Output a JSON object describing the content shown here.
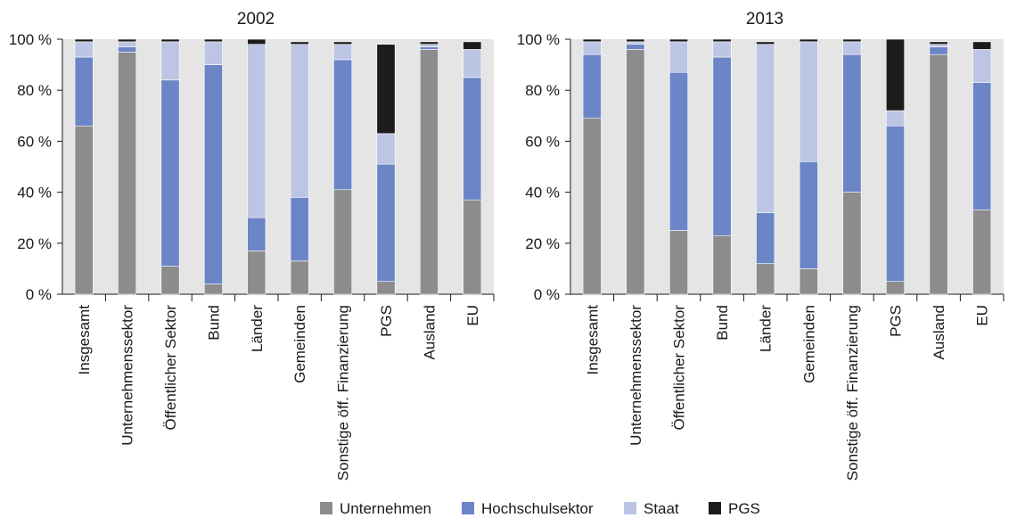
{
  "chart_data": [
    {
      "type": "bar",
      "stacked": true,
      "title": "2002",
      "categories": [
        "Insgesamt",
        "Unternehmenssektor",
        "Öffentlicher Sektor",
        "Bund",
        "Länder",
        "Gemeinden",
        "Sonstige öff. Finanzierung",
        "PGS",
        "Ausland",
        "EU"
      ],
      "series": [
        {
          "name": "Unternehmen",
          "values": [
            66,
            95,
            11,
            4,
            17,
            13,
            41,
            5,
            96,
            37
          ]
        },
        {
          "name": "Hochschulsektor",
          "values": [
            27,
            2,
            73,
            86,
            13,
            25,
            51,
            46,
            1,
            48
          ]
        },
        {
          "name": "Staat",
          "values": [
            6,
            2,
            15,
            9,
            68,
            60,
            6,
            12,
            1,
            11
          ]
        },
        {
          "name": "PGS",
          "values": [
            1,
            1,
            1,
            1,
            2,
            1,
            1,
            35,
            1,
            3
          ]
        }
      ],
      "yticks": [
        "0 %",
        "20 %",
        "40 %",
        "60 %",
        "80 %",
        "100 %"
      ],
      "ylim": [
        0,
        100
      ],
      "grid": false
    },
    {
      "type": "bar",
      "stacked": true,
      "title": "2013",
      "categories": [
        "Insgesamt",
        "Unternehmenssektor",
        "Öffentlicher Sektor",
        "Bund",
        "Länder",
        "Gemeinden",
        "Sonstige öff. Finanzierung",
        "PGS",
        "Ausland",
        "EU"
      ],
      "series": [
        {
          "name": "Unternehmen",
          "values": [
            69,
            96,
            25,
            23,
            12,
            10,
            40,
            5,
            94,
            33
          ]
        },
        {
          "name": "Hochschulsektor",
          "values": [
            25,
            2,
            62,
            70,
            20,
            42,
            54,
            61,
            3,
            50
          ]
        },
        {
          "name": "Staat",
          "values": [
            5,
            1,
            12,
            6,
            66,
            47,
            5,
            6,
            1,
            13
          ]
        },
        {
          "name": "PGS",
          "values": [
            1,
            1,
            1,
            1,
            1,
            1,
            1,
            28,
            1,
            3
          ]
        }
      ],
      "yticks": [
        "0 %",
        "20 %",
        "40 %",
        "60 %",
        "80 %",
        "100 %"
      ],
      "ylim": [
        0,
        100
      ],
      "grid": false
    }
  ],
  "legend": {
    "placement": "bottom",
    "items": [
      {
        "label": "Unternehmen",
        "color": "#8c8c8e"
      },
      {
        "label": "Hochschulsektor",
        "color": "#6b85c6"
      },
      {
        "label": "Staat",
        "color": "#bcc5e3"
      },
      {
        "label": "PGS",
        "color": "#1c1c1c"
      }
    ]
  },
  "colors": {
    "panel_bg": "#e5e5e5",
    "axis": "#1a1a1a"
  }
}
